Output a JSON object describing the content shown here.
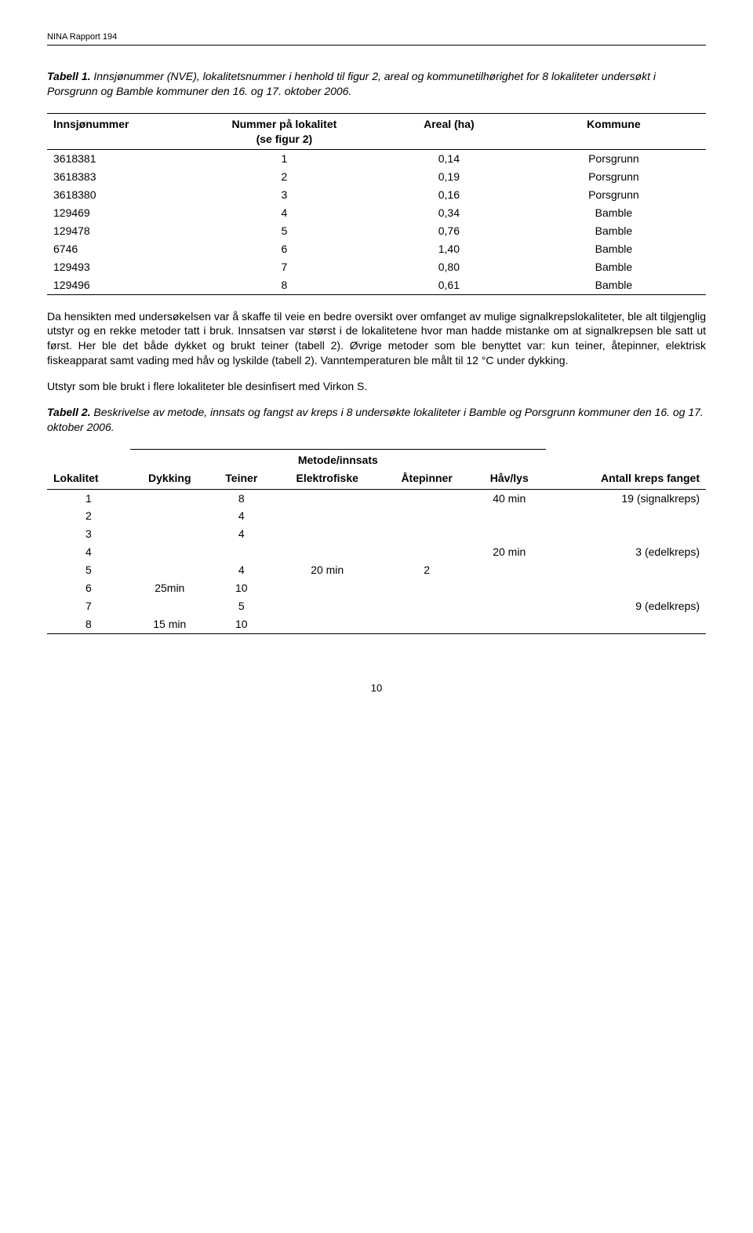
{
  "header": "NINA Rapport 194",
  "table1": {
    "caption_label": "Tabell 1.",
    "caption_text": " Innsjønummer (NVE), lokalitetsnummer i henhold til figur 2, areal og kommunetilhørighet for 8 lokaliteter undersøkt i Porsgrunn og Bamble kommuner den 16. og 17. oktober 2006.",
    "headers": {
      "c1": "Innsjønummer",
      "c2a": "Nummer på lokalitet",
      "c2b": "(se figur 2)",
      "c3": "Areal (ha)",
      "c4": "Kommune"
    },
    "rows": [
      {
        "c1": "3618381",
        "c2": "1",
        "c3": "0,14",
        "c4": "Porsgrunn"
      },
      {
        "c1": "3618383",
        "c2": "2",
        "c3": "0,19",
        "c4": "Porsgrunn"
      },
      {
        "c1": "3618380",
        "c2": "3",
        "c3": "0,16",
        "c4": "Porsgrunn"
      },
      {
        "c1": "129469",
        "c2": "4",
        "c3": "0,34",
        "c4": "Bamble"
      },
      {
        "c1": "129478",
        "c2": "5",
        "c3": "0,76",
        "c4": "Bamble"
      },
      {
        "c1": "6746",
        "c2": "6",
        "c3": "1,40",
        "c4": "Bamble"
      },
      {
        "c1": "129493",
        "c2": "7",
        "c3": "0,80",
        "c4": "Bamble"
      },
      {
        "c1": "129496",
        "c2": "8",
        "c3": "0,61",
        "c4": "Bamble"
      }
    ]
  },
  "para1": "Da hensikten med undersøkelsen var å skaffe til veie en bedre oversikt over omfanget av mulige signalkrepslokaliteter, ble alt tilgjenglig utstyr og en rekke metoder tatt i bruk. Innsatsen var størst i de lokalitetene hvor man hadde mistanke om at signalkrepsen ble satt ut først. Her ble det både dykket og brukt teiner (tabell 2). Øvrige metoder som ble benyttet var: kun teiner, åtepinner, elektrisk fiskeapparat samt vading med håv og lyskilde (tabell 2). Vanntemperaturen ble målt til 12 °C under dykking.",
  "para2": "Utstyr som ble brukt i flere lokaliteter ble desinfisert med Virkon S.",
  "table2": {
    "caption_label": "Tabell 2.",
    "caption_text": " Beskrivelse av metode, innsats og fangst av kreps i 8 undersøkte lokaliteter i Bamble og Porsgrunn kommuner den 16. og 17. oktober 2006.",
    "group_header": "Metode/innsats",
    "headers": {
      "c1": "Lokalitet",
      "c2": "Dykking",
      "c3": "Teiner",
      "c4": "Elektrofiske",
      "c5": "Åtepinner",
      "c6": "Håv/lys",
      "c7": "Antall kreps fanget"
    },
    "rows": [
      {
        "c1": "1",
        "c2": "",
        "c3": "8",
        "c4": "",
        "c5": "",
        "c6": "40 min",
        "c7": "19 (signalkreps)"
      },
      {
        "c1": "2",
        "c2": "",
        "c3": "4",
        "c4": "",
        "c5": "",
        "c6": "",
        "c7": ""
      },
      {
        "c1": "3",
        "c2": "",
        "c3": "4",
        "c4": "",
        "c5": "",
        "c6": "",
        "c7": ""
      },
      {
        "c1": "4",
        "c2": "",
        "c3": "",
        "c4": "",
        "c5": "",
        "c6": "20 min",
        "c7": "3 (edelkreps)"
      },
      {
        "c1": "5",
        "c2": "",
        "c3": "4",
        "c4": "20 min",
        "c5": "2",
        "c6": "",
        "c7": ""
      },
      {
        "c1": "6",
        "c2": "25min",
        "c3": "10",
        "c4": "",
        "c5": "",
        "c6": "",
        "c7": ""
      },
      {
        "c1": "7",
        "c2": "",
        "c3": "5",
        "c4": "",
        "c5": "",
        "c6": "",
        "c7": "9 (edelkreps)"
      },
      {
        "c1": "8",
        "c2": "15 min",
        "c3": "10",
        "c4": "",
        "c5": "",
        "c6": "",
        "c7": ""
      }
    ]
  },
  "page_number": "10"
}
